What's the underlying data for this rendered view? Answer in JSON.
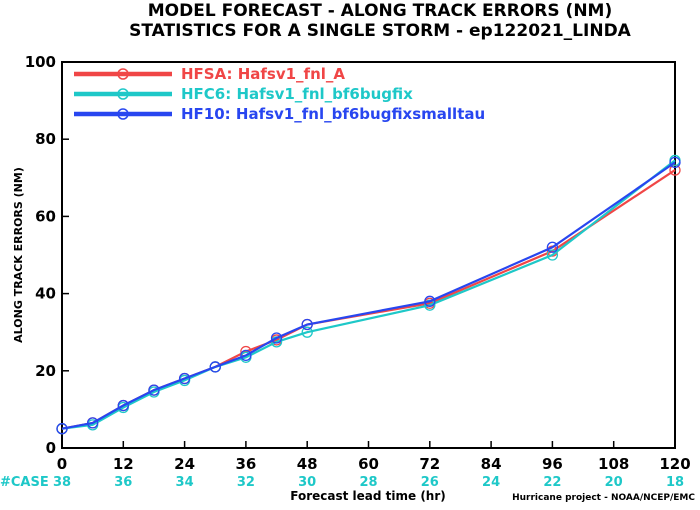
{
  "chart_data": {
    "type": "line",
    "title": "MODEL FORECAST - ALONG TRACK ERRORS (NM)",
    "subtitle": "STATISTICS FOR A SINGLE STORM - ep122021_LINDA",
    "xlabel": "Forecast lead time (hr)",
    "ylabel": "ALONG TRACK ERRORS (NM)",
    "xlim": [
      0,
      120
    ],
    "ylim": [
      0,
      100
    ],
    "x_ticks": [
      0,
      12,
      24,
      36,
      48,
      60,
      72,
      84,
      96,
      108,
      120
    ],
    "y_ticks": [
      0,
      20,
      40,
      60,
      80,
      100
    ],
    "grid": false,
    "legend_position": "top-left",
    "case_label": "#CASE",
    "case_counts": [
      38,
      36,
      34,
      32,
      30,
      28,
      26,
      24,
      22,
      20,
      18
    ],
    "credit": "Hurricane project - NOAA/NCEP/EMC",
    "series": [
      {
        "name": "HFSA: Hafsv1_fnl_A",
        "color": "#f04646",
        "x": [
          0,
          6,
          12,
          18,
          24,
          30,
          36,
          42,
          48,
          72,
          96,
          120
        ],
        "y": [
          5.0,
          6.5,
          11.0,
          15.0,
          18.0,
          21.0,
          25.0,
          28.0,
          32.0,
          37.5,
          51.0,
          72.0
        ]
      },
      {
        "name": "HFC6: Hafsv1_fnl_bf6bugfix",
        "color": "#1ec8c8",
        "x": [
          0,
          6,
          12,
          18,
          24,
          30,
          36,
          42,
          48,
          72,
          96,
          120
        ],
        "y": [
          5.0,
          6.0,
          10.5,
          14.5,
          17.5,
          21.0,
          23.5,
          27.5,
          30.0,
          37.0,
          50.0,
          74.5
        ]
      },
      {
        "name": "HF10: Hafsv1_fnl_bf6bugfixsmalltau",
        "color": "#2846f0",
        "x": [
          0,
          6,
          12,
          18,
          24,
          30,
          36,
          42,
          48,
          72,
          96,
          120
        ],
        "y": [
          5.0,
          6.5,
          11.0,
          15.0,
          18.0,
          21.0,
          24.0,
          28.5,
          32.0,
          38.0,
          52.0,
          74.0
        ]
      }
    ]
  },
  "colors": {
    "axis": "#000000",
    "case_label": "#1ec8c8",
    "case_counts": "#1ec8c8"
  }
}
